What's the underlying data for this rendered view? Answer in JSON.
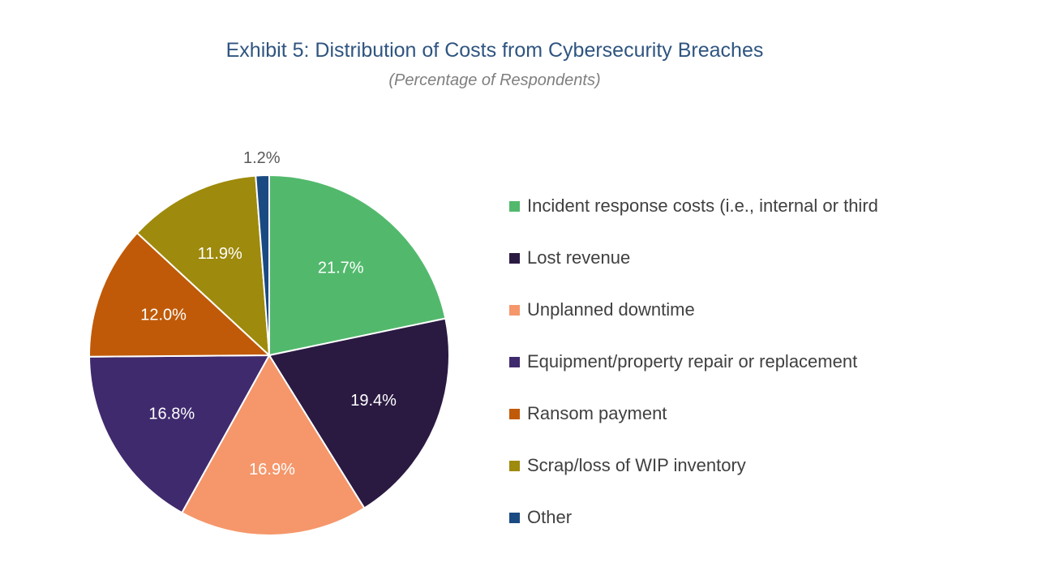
{
  "chart_data": {
    "type": "pie",
    "title": "Exhibit 5: Distribution of Costs from Cybersecurity Breaches",
    "subtitle": "(Percentage of Respondents)",
    "legend_position": "right",
    "slices": [
      {
        "label": "Incident response costs (i.e., internal or third",
        "value": 21.7,
        "display": "21.7%",
        "color": "#52b96c",
        "label_color": "#ffffff"
      },
      {
        "label": "Lost revenue",
        "value": 19.4,
        "display": "19.4%",
        "color": "#2a1a42",
        "label_color": "#ffffff"
      },
      {
        "label": "Unplanned downtime",
        "value": 16.9,
        "display": "16.9%",
        "color": "#f5976b",
        "label_color": "#ffffff"
      },
      {
        "label": "Equipment/property repair or replacement",
        "value": 16.8,
        "display": "16.8%",
        "color": "#3f2a6e",
        "label_color": "#ffffff"
      },
      {
        "label": "Ransom payment",
        "value": 12.0,
        "display": "12.0%",
        "color": "#c05a08",
        "label_color": "#ffffff"
      },
      {
        "label": "Scrap/loss of WIP inventory",
        "value": 11.9,
        "display": "11.9%",
        "color": "#9e8a0c",
        "label_color": "#ffffff"
      },
      {
        "label": "Other",
        "value": 1.2,
        "display": "1.2%",
        "color": "#1a4a82",
        "label_color": "#595959",
        "label_outside": true
      }
    ]
  }
}
